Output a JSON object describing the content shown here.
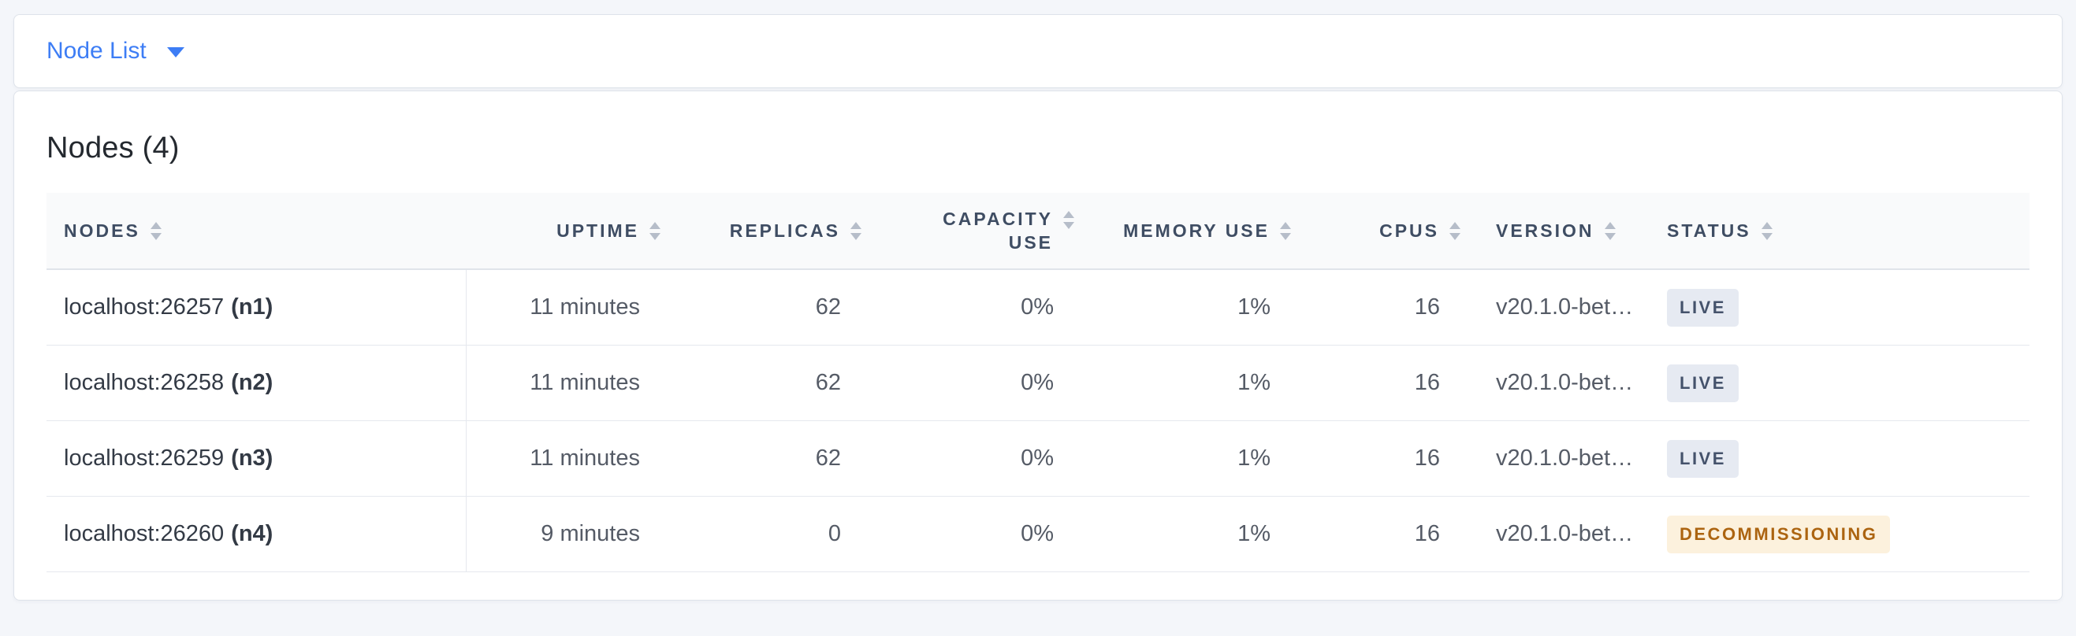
{
  "selector": {
    "label": "Node List"
  },
  "panel": {
    "title": "Nodes (4)"
  },
  "table": {
    "columns": [
      {
        "id": "nodes",
        "label": "NODES",
        "align": "left"
      },
      {
        "id": "uptime",
        "label": "UPTIME",
        "align": "right"
      },
      {
        "id": "replicas",
        "label": "REPLICAS",
        "align": "right"
      },
      {
        "id": "capacity",
        "label": "CAPACITY USE",
        "align": "right",
        "wrap": true
      },
      {
        "id": "memory",
        "label": "MEMORY USE",
        "align": "right"
      },
      {
        "id": "cpus",
        "label": "CPUS",
        "align": "right"
      },
      {
        "id": "version",
        "label": "VERSION",
        "align": "left"
      },
      {
        "id": "status",
        "label": "STATUS",
        "align": "left"
      }
    ],
    "rows": [
      {
        "address": "localhost:26257",
        "node_id": "(n1)",
        "uptime": "11 minutes",
        "replicas": "62",
        "capacity_use": "0%",
        "memory_use": "1%",
        "cpus": "16",
        "version": "v20.1.0-bet…",
        "status_label": "LIVE",
        "status_type": "live"
      },
      {
        "address": "localhost:26258",
        "node_id": "(n2)",
        "uptime": "11 minutes",
        "replicas": "62",
        "capacity_use": "0%",
        "memory_use": "1%",
        "cpus": "16",
        "version": "v20.1.0-bet…",
        "status_label": "LIVE",
        "status_type": "live"
      },
      {
        "address": "localhost:26259",
        "node_id": "(n3)",
        "uptime": "11 minutes",
        "replicas": "62",
        "capacity_use": "0%",
        "memory_use": "1%",
        "cpus": "16",
        "version": "v20.1.0-bet…",
        "status_label": "LIVE",
        "status_type": "live"
      },
      {
        "address": "localhost:26260",
        "node_id": "(n4)",
        "uptime": "9 minutes",
        "replicas": "0",
        "capacity_use": "0%",
        "memory_use": "1%",
        "cpus": "16",
        "version": "v20.1.0-bet…",
        "status_label": "DECOMMISSIONING",
        "status_type": "decommissioning"
      }
    ]
  },
  "icons": {
    "selector_caret": "caret-down-icon",
    "column_sort": "sort-arrows-icon"
  },
  "colors": {
    "accent_blue": "#3d7df5",
    "page_background": "#f4f6fa",
    "header_strip_background": "#f9fafb",
    "live_badge_bg": "#e6eaf2",
    "live_badge_text": "#44526b",
    "decommissioning_badge_bg": "#fcf1dd",
    "decommissioning_badge_text": "#ac6410"
  }
}
